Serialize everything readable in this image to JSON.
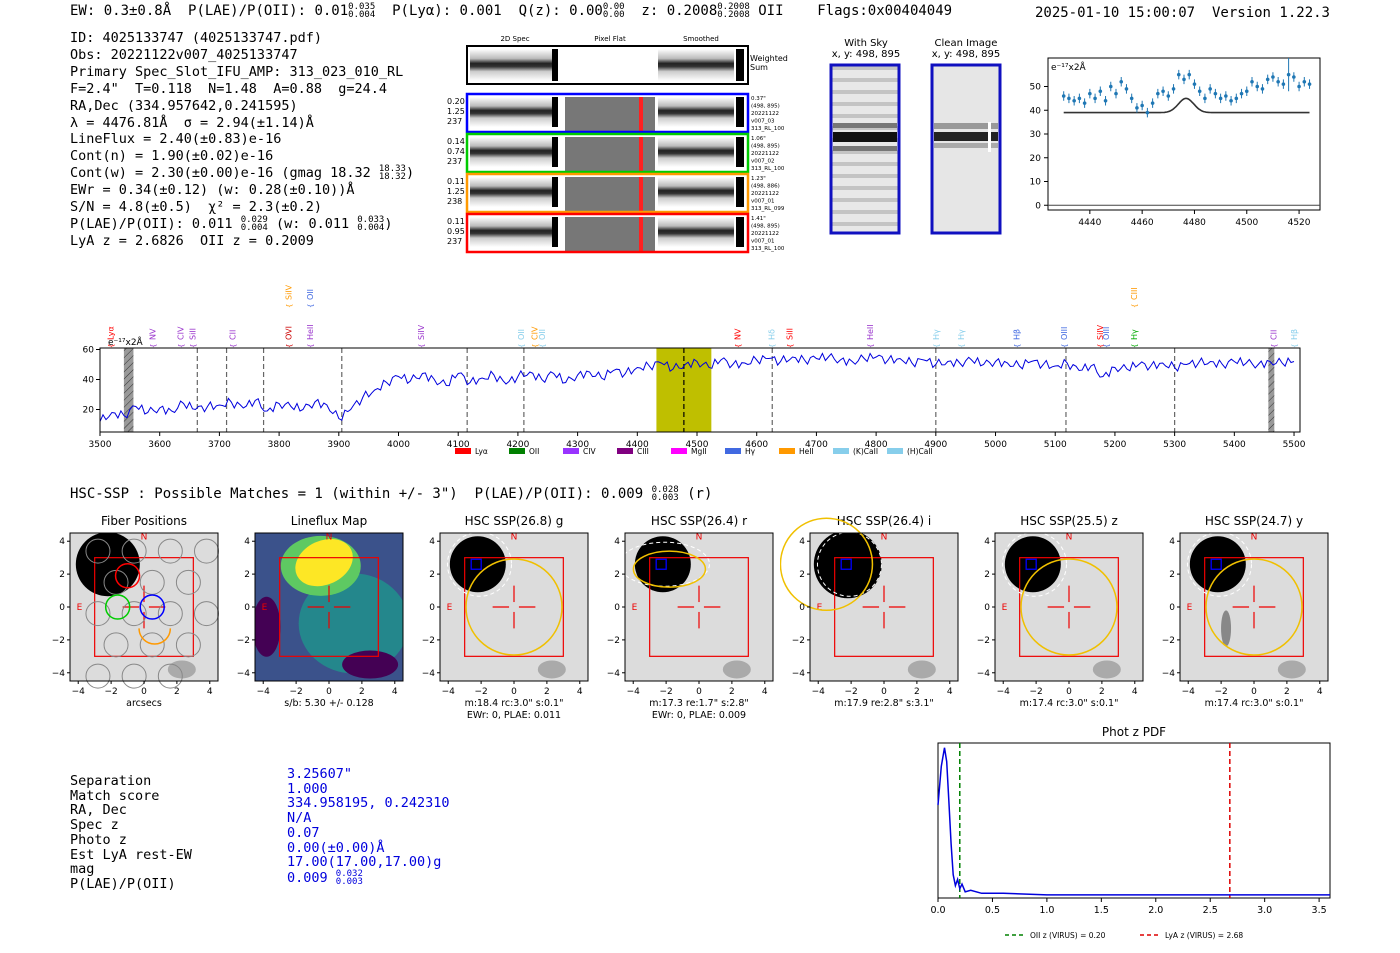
{
  "header": {
    "ew": "EW: 0.3±0.8Å",
    "plae_label": "P(LAE)/P(OII): 0.01",
    "plae_hi": "0.035",
    "plae_lo": "0.004",
    "plya": "P(Lyα): 0.001",
    "qz_label": "Q(z): 0.00",
    "qz_hi": "0.00",
    "qz_lo": "0.00",
    "z_label": "z: 0.2008",
    "z_hi": "0.2008",
    "z_lo": "0.2008",
    "z_line": "OII",
    "flags": "Flags:0x00404049",
    "datetime": "2025-01-10 15:00:07",
    "version": "Version 1.22.3"
  },
  "info": {
    "id": "ID: 4025133747 (4025133747.pdf)",
    "obs": "Obs: 20221122v007_4025133747",
    "primary": "Primary Spec_Slot_IFU_AMP: 313_023_010_RL",
    "fit": "F=2.4\"  T=0.118  N=1.48  A=0.88  g=24.4",
    "radec": "RA,Dec (334.957642,0.241595)",
    "lambda": "λ = 4476.81Å  σ = 2.94(±1.14)Å",
    "lineflux": "LineFlux = 2.40(±0.83)e-16",
    "contn": "Cont(n) = 1.90(±0.02)e-16",
    "contw": "Cont(w) = 2.30(±0.00)e-16 (gmag 18.32",
    "contw_hi": "18.33",
    "contw_lo": "18.32",
    "contw_end": ")",
    "ewr": "EWr = 0.34(±0.12) (w: 0.28(±0.10))Å",
    "sn": "S/N = 4.8(±0.5)  χ² = 2.3(±0.2)",
    "plae": "P(LAE)/P(OII): 0.011",
    "plae_hi": "0.029",
    "plae_lo": "0.004",
    "plae_w": "(w: 0.011",
    "plae_w_hi": "0.033",
    "plae_w_lo": "0.004",
    "plae_w_end": ")",
    "lyaz": "LyA z = 2.6826  OII z = 0.2009"
  },
  "spec2d": {
    "headers": [
      "2D Spec",
      "Pixel Flat",
      "Smoothed"
    ],
    "weighted_label_1": "Weighted",
    "weighted_label_2": "Sum",
    "rows": [
      {
        "color": "#0000ff",
        "left": [
          "0.20",
          "1.25",
          "237"
        ],
        "right": [
          "0.37\"",
          "(498, 895)",
          "20221122",
          "v007_03",
          "313_RL_100"
        ]
      },
      {
        "color": "#00cc00",
        "left": [
          "0.14",
          "0.74",
          "237"
        ],
        "right": [
          "1.06\"",
          "(498, 895)",
          "20221122",
          "v007_02",
          "313_RL_100"
        ]
      },
      {
        "color": "#ff9900",
        "left": [
          "0.11",
          "1.25",
          "238"
        ],
        "right": [
          "1.23\"",
          "(498, 886)",
          "20221122",
          "v007_01",
          "313_RL_099"
        ]
      },
      {
        "color": "#ff0000",
        "left": [
          "0.11",
          "0.95",
          "237"
        ],
        "right": [
          "1.41\"",
          "(498, 895)",
          "20221122",
          "v007_01",
          "313_RL_100"
        ]
      }
    ]
  },
  "cutouts": {
    "with_sky_title": "With Sky",
    "with_sky_coords": "x, y: 498, 895",
    "clean_title": "Clean Image",
    "clean_coords": "x, y: 498, 895"
  },
  "chart_data": [
    {
      "type": "line",
      "name": "zoom-spectrum",
      "ylabel": "e⁻¹⁷x2Å",
      "xlim": [
        4424,
        4528
      ],
      "ylim": [
        -2,
        62
      ],
      "xticks": [
        4440,
        4460,
        4480,
        4500,
        4520
      ],
      "yticks": [
        0,
        10,
        20,
        30,
        40,
        50
      ],
      "x": [
        4430,
        4432,
        4434,
        4436,
        4438,
        4440,
        4442,
        4444,
        4446,
        4448,
        4450,
        4452,
        4454,
        4456,
        4458,
        4460,
        4462,
        4464,
        4466,
        4468,
        4470,
        4472,
        4474,
        4476,
        4478,
        4480,
        4482,
        4484,
        4486,
        4488,
        4490,
        4492,
        4494,
        4496,
        4498,
        4500,
        4502,
        4504,
        4506,
        4508,
        4510,
        4512,
        4514,
        4516,
        4518,
        4520,
        4522,
        4524
      ],
      "y": [
        46,
        45,
        44,
        45,
        43,
        47,
        45,
        48,
        44,
        50,
        47,
        52,
        49,
        45,
        41,
        42,
        39,
        43,
        47,
        48,
        46,
        49,
        55,
        53,
        55,
        51,
        48,
        45,
        49,
        47,
        45,
        46,
        44,
        45,
        47,
        48,
        52,
        50,
        49,
        53,
        54,
        52,
        51,
        55,
        54,
        50,
        52,
        51
      ],
      "err": [
        2,
        2,
        2,
        2,
        2,
        2,
        2,
        2,
        2,
        2,
        2,
        2,
        2,
        2,
        2,
        2,
        2,
        2,
        2,
        2,
        2,
        2,
        2,
        2,
        2,
        2,
        2,
        2,
        2,
        2,
        2,
        2,
        2,
        2,
        2,
        2,
        2,
        2,
        2,
        2,
        2,
        2,
        2,
        7,
        2,
        2,
        2,
        2
      ],
      "model_base": 39,
      "model_peak": 45,
      "model_center": 4476.8,
      "model_sigma": 2.94
    },
    {
      "type": "line",
      "name": "full-spectrum",
      "ylabel": "e⁻¹⁷x2Å",
      "xlim": [
        3500,
        5510
      ],
      "ylim": [
        5,
        61
      ],
      "xticks": [
        3500,
        3600,
        3700,
        3800,
        3900,
        4000,
        4100,
        4200,
        4300,
        4400,
        4500,
        4600,
        4700,
        4800,
        4900,
        5000,
        5100,
        5200,
        5300,
        5400,
        5500
      ],
      "yticks": [
        20,
        40,
        60
      ],
      "series_x": [
        3500,
        3520,
        3540,
        3560,
        3580,
        3600,
        3620,
        3640,
        3660,
        3680,
        3700,
        3720,
        3740,
        3760,
        3780,
        3800,
        3820,
        3840,
        3860,
        3880,
        3900,
        3920,
        3940,
        3960,
        3980,
        4000,
        4020,
        4040,
        4060,
        4080,
        4100,
        4120,
        4140,
        4160,
        4180,
        4200,
        4220,
        4240,
        4260,
        4280,
        4300,
        4320,
        4340,
        4360,
        4380,
        4400,
        4420,
        4440,
        4460,
        4480,
        4500,
        4520,
        4540,
        4560,
        4580,
        4600,
        4620,
        4640,
        4660,
        4680,
        4700,
        4720,
        4740,
        4760,
        4780,
        4800,
        4820,
        4840,
        4860,
        4880,
        4900,
        4920,
        4940,
        4960,
        4980,
        5000,
        5020,
        5040,
        5060,
        5080,
        5100,
        5120,
        5140,
        5160,
        5180,
        5200,
        5220,
        5240,
        5260,
        5280,
        5300,
        5320,
        5340,
        5360,
        5380,
        5400,
        5420,
        5440,
        5460,
        5480,
        5500
      ],
      "series_y": [
        12,
        18,
        16,
        22,
        18,
        21,
        19,
        24,
        20,
        22,
        23,
        25,
        21,
        26,
        19,
        24,
        22,
        20,
        25,
        23,
        14,
        20,
        28,
        33,
        38,
        42,
        39,
        44,
        40,
        36,
        44,
        38,
        41,
        43,
        37,
        42,
        45,
        40,
        44,
        38,
        43,
        45,
        41,
        46,
        44,
        48,
        49,
        51,
        47,
        50,
        52,
        48,
        53,
        50,
        51,
        53,
        54,
        52,
        55,
        53,
        54,
        55,
        53,
        52,
        54,
        55,
        53,
        54,
        51,
        53,
        50,
        52,
        51,
        53,
        50,
        52,
        51,
        49,
        52,
        50,
        49,
        51,
        46,
        49,
        42,
        48,
        47,
        50,
        49,
        51,
        48,
        50,
        51,
        52,
        50,
        52,
        51,
        50,
        52,
        51,
        52
      ],
      "vlines": [
        3663,
        3712,
        3774,
        3905,
        4115,
        4210,
        4478,
        4626,
        4900,
        5118,
        5300
      ],
      "shaded": [
        {
          "x0": 4432,
          "x1": 4524
        }
      ],
      "hatched": [
        {
          "x0": 3540,
          "x1": 3556
        },
        {
          "x0": 5457,
          "x1": 5467
        }
      ],
      "line_labels": [
        {
          "text": "Lyα",
          "x": 3518,
          "color": "#ff0000",
          "row": "low"
        },
        {
          "text": "NV",
          "x": 3588,
          "color": "#9933cc",
          "row": "low"
        },
        {
          "text": "CIV",
          "x": 3635,
          "color": "#9933cc",
          "row": "low"
        },
        {
          "text": "SiII",
          "x": 3655,
          "color": "#9933cc",
          "row": "low"
        },
        {
          "text": "CII",
          "x": 3722,
          "color": "#9933cc",
          "row": "low"
        },
        {
          "text": "OVI",
          "x": 3816,
          "color": "#cc0000",
          "row": "low"
        },
        {
          "text": "SiIV",
          "x": 3816,
          "color": "#ff9900",
          "row": "high"
        },
        {
          "text": "HeII",
          "x": 3852,
          "color": "#9933cc",
          "row": "low"
        },
        {
          "text": "OII",
          "x": 3852,
          "color": "#4169e1",
          "row": "high"
        },
        {
          "text": "SiIV",
          "x": 4038,
          "color": "#9933cc",
          "row": "low"
        },
        {
          "text": "OII",
          "x": 4205,
          "color": "#87ceeb",
          "row": "low"
        },
        {
          "text": "CIV",
          "x": 4228,
          "color": "#ff9900",
          "row": "low"
        },
        {
          "text": "OII",
          "x": 4240,
          "color": "#87ceeb",
          "row": "low"
        },
        {
          "text": "NV",
          "x": 4568,
          "color": "#ff0000",
          "row": "low"
        },
        {
          "text": "Hδ",
          "x": 4625,
          "color": "#87ceeb",
          "row": "low"
        },
        {
          "text": "SiII",
          "x": 4655,
          "color": "#ff0000",
          "row": "low"
        },
        {
          "text": "HeII",
          "x": 4790,
          "color": "#9933cc",
          "row": "low"
        },
        {
          "text": "Hγ",
          "x": 4900,
          "color": "#87ceeb",
          "row": "low"
        },
        {
          "text": "Hγ",
          "x": 4942,
          "color": "#87ceeb",
          "row": "low"
        },
        {
          "text": "Hβ",
          "x": 5035,
          "color": "#4169e1",
          "row": "low"
        },
        {
          "text": "OIII",
          "x": 5115,
          "color": "#4169e1",
          "row": "low"
        },
        {
          "text": "SiIV",
          "x": 5175,
          "color": "#ff0000",
          "row": "low"
        },
        {
          "text": "OIII",
          "x": 5185,
          "color": "#4169e1",
          "row": "low"
        },
        {
          "text": "CIII",
          "x": 5232,
          "color": "#ff9900",
          "row": "high"
        },
        {
          "text": "Hγ",
          "x": 5232,
          "color": "#00aa00",
          "row": "low"
        },
        {
          "text": "CII",
          "x": 5466,
          "color": "#9933cc",
          "row": "low"
        },
        {
          "text": "Hβ",
          "x": 5500,
          "color": "#87ceeb",
          "row": "low"
        }
      ],
      "legend": [
        {
          "label": "Lyα",
          "color": "#ff0000"
        },
        {
          "label": "OII",
          "color": "#008000"
        },
        {
          "label": "CIV",
          "color": "#9933ff"
        },
        {
          "label": "CIII",
          "color": "#800080"
        },
        {
          "label": "MgII",
          "color": "#ff00ff"
        },
        {
          "label": "Hγ",
          "color": "#4169e1"
        },
        {
          "label": "HeII",
          "color": "#ff9900"
        },
        {
          "label": "(K)CaII",
          "color": "#87ceeb"
        },
        {
          "label": "(H)CaII",
          "color": "#87ceeb"
        }
      ]
    },
    {
      "type": "line",
      "name": "photz-pdf",
      "title": "Phot z PDF",
      "xlim": [
        0,
        3.6
      ],
      "ylim": [
        0,
        1
      ],
      "xticks": [
        0.0,
        0.5,
        1.0,
        1.5,
        2.0,
        2.5,
        3.0,
        3.5
      ],
      "xticklabels": [
        "0.0",
        "0.5",
        "1.0",
        "1.5",
        "2.0",
        "2.5",
        "3.0",
        "3.5"
      ],
      "x": [
        0,
        0.03,
        0.06,
        0.08,
        0.1,
        0.12,
        0.14,
        0.16,
        0.18,
        0.2,
        0.22,
        0.25,
        0.3,
        0.4,
        0.6,
        1.0,
        2.0,
        3.0,
        3.6
      ],
      "y": [
        0.6,
        0.85,
        0.97,
        0.88,
        0.62,
        0.35,
        0.15,
        0.08,
        0.12,
        0.06,
        0.09,
        0.04,
        0.05,
        0.03,
        0.03,
        0.02,
        0.02,
        0.02,
        0.02
      ],
      "vlines": [
        {
          "x": 0.2,
          "color": "#008000",
          "label": "OII z (VIRUS) = 0.20"
        },
        {
          "x": 2.68,
          "color": "#dd0000",
          "label": "LyA z (VIRUS) = 2.68"
        }
      ]
    }
  ],
  "hsc": {
    "title_prefix": "HSC-SSP : Possible Matches = 1 (within +/- 3\")  P(LAE)/P(OII): 0.009",
    "title_hi": "0.028",
    "title_lo": "0.003",
    "title_suffix": "(r)",
    "axis_ticks": [
      "4",
      "2",
      "0",
      "−2",
      "−4"
    ],
    "x_ticks": [
      "−4",
      "−2",
      "0",
      "2",
      "4"
    ],
    "compass_n": "N",
    "compass_e": "E",
    "panels": [
      {
        "title": "Fiber Positions",
        "caption1": "arcsecs",
        "caption2": "",
        "kind": "fiber"
      },
      {
        "title": "Lineflux Map",
        "caption1": "s/b: 5.30 +/- 0.128",
        "caption2": "",
        "kind": "lineflux"
      },
      {
        "title": "HSC SSP(26.8) g",
        "caption1": "m:18.4 rc:3.0\"  s:0.1\"",
        "caption2": "EWr: 0, PLAE: 0.011",
        "kind": "g"
      },
      {
        "title": "HSC SSP(26.4) r",
        "caption1": "m:17.3  re:1.7\"  s:2.8\"",
        "caption2": "EWr: 0, PLAE: 0.009",
        "kind": "r"
      },
      {
        "title": "HSC SSP(26.4) i",
        "caption1": "m:17.9  re:2.8\"  s:3.1\"",
        "caption2": "",
        "kind": "i"
      },
      {
        "title": "HSC SSP(25.5) z",
        "caption1": "m:17.4 rc:3.0\"  s:0.1\"",
        "caption2": "",
        "kind": "z"
      },
      {
        "title": "HSC SSP(24.7) y",
        "caption1": "m:17.4 rc:3.0\"  s:0.1\"",
        "caption2": "",
        "kind": "y"
      }
    ]
  },
  "match": {
    "labels": [
      "Separation",
      "Match score",
      "RA, Dec",
      "Spec z",
      "Photo z",
      "Est LyA rest-EW",
      "mag",
      "P(LAE)/P(OII)"
    ],
    "values": [
      "3.25607\"",
      "1.000",
      "334.958195, 0.242310",
      "N/A",
      "0.07",
      "0.00(±0.00)Å",
      "17.00(17.00,17.00)g",
      "0.009"
    ],
    "plae_hi": "0.032",
    "plae_lo": "0.003"
  }
}
